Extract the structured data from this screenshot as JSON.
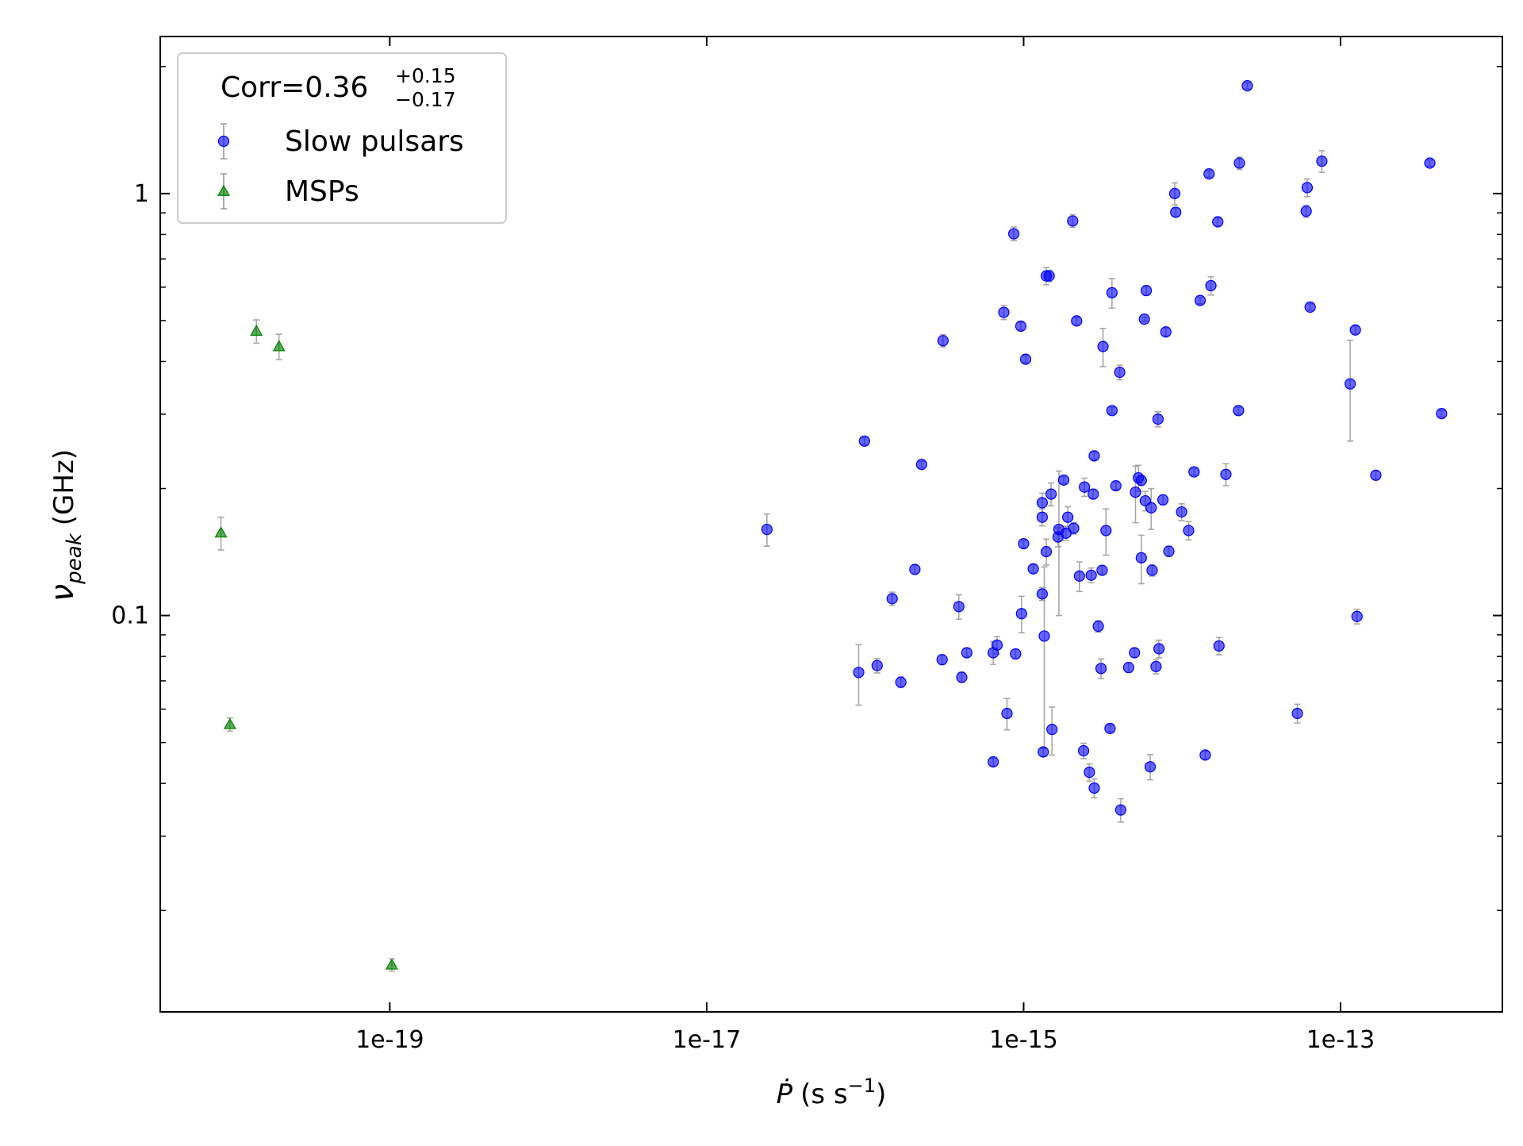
{
  "chart_data": {
    "type": "scatter",
    "xscale": "log",
    "yscale": "log",
    "xlim": [
      3.56e-21,
      1.05e-12
    ],
    "ylim": [
      0.0115,
      2.356
    ],
    "xticks": [
      {
        "value": 1e-19,
        "label": "1e-19"
      },
      {
        "value": 1e-17,
        "label": "1e-17"
      },
      {
        "value": 1e-15,
        "label": "1e-15"
      },
      {
        "value": 1e-13,
        "label": "1e-13"
      }
    ],
    "yticks": [
      0.1,
      1
    ],
    "yminor_ticks": [
      0.02,
      0.03,
      0.04,
      0.05,
      0.06,
      0.07,
      0.08,
      0.09,
      0.2,
      0.3,
      0.4,
      0.5,
      0.6,
      0.7,
      0.8,
      0.9,
      2
    ],
    "xlabel": {
      "symbol": "Ṗ",
      "unit": "(s s",
      "exponent": "−1",
      "close": ")"
    },
    "ylabel": {
      "symbol": "ν",
      "subscript": "peak",
      "unit": "(GHz)"
    },
    "legend_title": {
      "text": "Corr=0.36",
      "upper": "+0.15",
      "lower": "−0.17"
    },
    "legend_position": "upper left",
    "error_color": "#999999",
    "series": [
      {
        "name": "Slow pulsars",
        "marker": "circle",
        "color": "#0000ff",
        "x": [
          2.4e-17,
          9.1e-17,
          9.9e-17,
          1.19e-16,
          1.48e-16,
          1.68e-16,
          2.06e-16,
          2.27e-16,
          3.06e-16,
          3.1e-16,
          3.9e-16,
          4.07e-16,
          4.38e-16,
          6.43e-16,
          6.43e-16,
          6.8e-16,
          7.5e-16,
          7.85e-16,
          8.67e-16,
          8.9e-16,
          9.6e-16,
          9.7e-16,
          1e-15,
          1.03e-15,
          1.15e-15,
          1.31e-15,
          1.31e-15,
          1.31e-15,
          1.33e-15,
          1.35e-15,
          1.39e-15,
          1.39e-15,
          1.45e-15,
          1.49e-15,
          1.51e-15,
          1.65e-15,
          1.67e-15,
          1.79e-15,
          1.85e-15,
          1.9e-15,
          2.04e-15,
          2.07e-15,
          2.16e-15,
          2.25e-15,
          2.39e-15,
          2.42e-15,
          2.6e-15,
          2.67e-15,
          2.75e-15,
          2.79e-15,
          2.79e-15,
          2.96e-15,
          3.08e-15,
          3.13e-15,
          3.17e-15,
          3.31e-15,
          3.51e-15,
          3.61e-15,
          3.61e-15,
          3.82e-15,
          4.04e-15,
          4.1e-15,
          4.6e-15,
          5.01e-15,
          5.08e-15,
          5.3e-15,
          5.53e-15,
          5.53e-15,
          5.78e-15,
          5.86e-15,
          5.94e-15,
          6.29e-15,
          6.38e-15,
          6.47e-15,
          6.85e-15,
          7.05e-15,
          7.15e-15,
          7.57e-15,
          7.9e-15,
          8.25e-15,
          8.99e-15,
          9.12e-15,
          9.93e-15,
          1.1e-14,
          1.19e-14,
          1.3e-14,
          1.4e-14,
          1.48e-14,
          1.52e-14,
          1.68e-14,
          1.71e-14,
          1.89e-14,
          2.27e-14,
          2.3e-14,
          2.58e-14,
          5.34e-14,
          6.07e-14,
          6.16e-14,
          6.43e-14,
          7.62e-14,
          1.15e-13,
          1.24e-13,
          1.27e-13,
          1.67e-13,
          3.66e-13,
          4.34e-13
        ],
        "values": [
          0.16,
          0.0733,
          0.259,
          0.0761,
          0.1096,
          0.0695,
          0.1286,
          0.228,
          0.0786,
          0.448,
          0.105,
          0.0714,
          0.0816,
          0.0816,
          0.045,
          0.0851,
          0.523,
          0.0586,
          0.803,
          0.0811,
          0.485,
          0.101,
          0.148,
          0.405,
          0.129,
          0.185,
          0.1125,
          0.171,
          0.0475,
          0.0894,
          0.1417,
          0.638,
          0.638,
          0.194,
          0.0537,
          0.1535,
          0.16,
          0.2094,
          0.1567,
          0.171,
          0.861,
          0.161,
          0.499,
          0.124,
          0.0478,
          0.2016,
          0.0425,
          0.1246,
          0.194,
          0.039,
          0.239,
          0.0943,
          0.0749,
          0.128,
          0.434,
          0.159,
          0.054,
          0.306,
          0.582,
          0.203,
          0.377,
          0.0346,
          0.0753,
          0.0816,
          0.196,
          0.212,
          0.209,
          0.137,
          0.504,
          0.187,
          0.589,
          0.0438,
          0.18,
          0.128,
          0.0757,
          0.292,
          0.0834,
          0.188,
          0.47,
          0.142,
          1.0,
          0.903,
          0.176,
          0.159,
          0.219,
          0.558,
          0.0467,
          1.113,
          0.605,
          0.857,
          0.0847,
          0.216,
          0.306,
          1.181,
          1.8,
          0.0586,
          0.908,
          1.033,
          0.538,
          1.193,
          0.354,
          0.475,
          0.0995,
          0.215,
          1.181,
          0.301
        ],
        "errors": [
          0.014,
          0.012,
          0.005,
          0.003,
          0.004,
          0.002,
          0.003,
          0.004,
          0.002,
          0.015,
          0.007,
          0.002,
          0.002,
          0.005,
          0.001,
          0.004,
          0.02,
          0.005,
          0.03,
          0.002,
          0.01,
          0.01,
          0.003,
          0.008,
          0.003,
          0.01,
          0.004,
          0.008,
          0.001,
          0.041,
          0.01,
          0.03,
          0.02,
          0.012,
          0.007,
          0.008,
          0.06,
          0.004,
          0.006,
          0.01,
          0.03,
          0.005,
          0.01,
          0.01,
          0.002,
          0.01,
          0.002,
          0.005,
          0.005,
          0.002,
          0.005,
          0.003,
          0.004,
          0.003,
          0.045,
          0.02,
          0.001,
          0.005,
          0.047,
          0.004,
          0.015,
          0.0022,
          0.002,
          0.002,
          0.03,
          0.015,
          0.005,
          0.018,
          0.005,
          0.01,
          0.015,
          0.003,
          0.02,
          0.004,
          0.003,
          0.012,
          0.004,
          0.005,
          0.01,
          0.004,
          0.06,
          0.02,
          0.008,
          0.008,
          0.004,
          0.01,
          0.001,
          0.02,
          0.03,
          0.02,
          0.004,
          0.013,
          0.006,
          0.04,
          0.03,
          0.003,
          0.03,
          0.05,
          0.01,
          0.07,
          0.095,
          0.01,
          0.004,
          0.005,
          0.02,
          0.005
        ]
      },
      {
        "name": "MSPs",
        "marker": "triangle",
        "color": "#008000",
        "x": [
          8.6e-21,
          9.8e-21,
          1.44e-20,
          2e-20,
          1.03e-19
        ],
        "values": [
          0.157,
          0.0552,
          0.472,
          0.434,
          0.01486
        ],
        "errors": [
          0.014,
          0.002,
          0.03,
          0.03,
          0.0005
        ]
      }
    ]
  }
}
